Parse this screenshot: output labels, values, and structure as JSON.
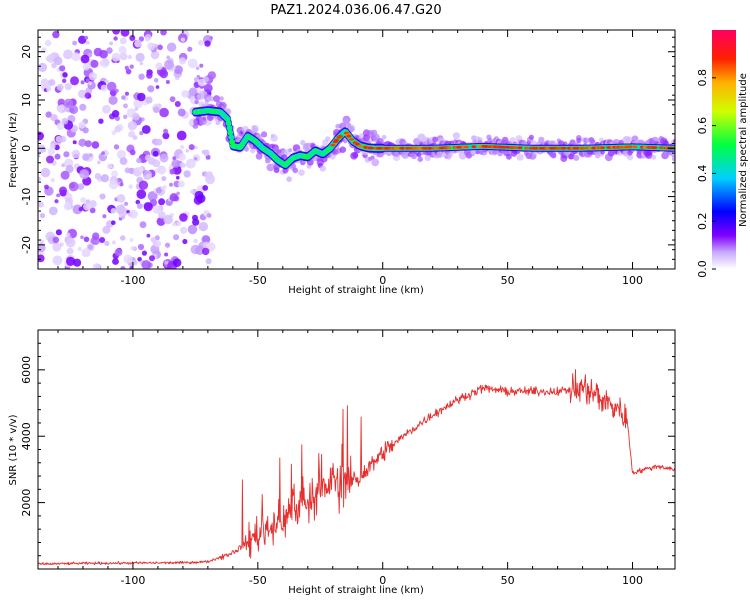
{
  "title": "PAZ1.2024.036.06.47.G20",
  "colors": {
    "snr_line": "#e53030",
    "axis": "#000000",
    "background": "#ffffff"
  },
  "chart_data": [
    {
      "type": "heatmap",
      "xlabel": "Height of straight line (km)",
      "ylabel": "Frequency (Hz)",
      "xlim": [
        -138,
        117
      ],
      "ylim": [
        -25,
        24.5
      ],
      "xticks": [
        -100,
        -50,
        0,
        50,
        100
      ],
      "xtick_labels": [
        "-100",
        "-50",
        "0",
        "50",
        "100"
      ],
      "yticks": [
        -20,
        -10,
        0,
        10,
        20
      ],
      "ytick_labels": [
        "-20",
        "-10",
        "0",
        "10",
        "20"
      ],
      "colorbar": {
        "label": "Normalized spectral amplitude",
        "ticks": [
          0.0,
          0.2,
          0.4,
          0.6,
          0.8
        ],
        "tick_labels": [
          "0.0",
          "0.2",
          "0.4",
          "0.6",
          "0.8"
        ],
        "range": [
          0,
          1
        ]
      },
      "noise_region_x": [
        -138,
        -68
      ],
      "ridge": {
        "x": [
          -75,
          -70,
          -65,
          -62,
          -60,
          -57,
          -54,
          -51,
          -48,
          -45,
          -42,
          -39,
          -36,
          -33,
          -30,
          -27,
          -24,
          -21,
          -18,
          -15,
          -12,
          -9,
          -6,
          -3,
          0,
          20,
          40,
          60,
          80,
          100,
          117
        ],
        "y": [
          7.5,
          7.8,
          7.5,
          6.0,
          0.5,
          0.2,
          2.5,
          1.5,
          0.0,
          -1.0,
          -2.5,
          -3.5,
          -2.0,
          -1.5,
          -1.8,
          -0.5,
          -1.2,
          0.0,
          2.0,
          3.5,
          1.5,
          0.5,
          0.1,
          0.0,
          0.0,
          0.0,
          0.4,
          0.0,
          0.0,
          0.3,
          0.0
        ]
      }
    },
    {
      "type": "line",
      "xlabel": "Height of straight line (km)",
      "ylabel": "SNR (10 * v/v)",
      "xlim": [
        -138,
        117
      ],
      "ylim": [
        0,
        7200
      ],
      "xticks": [
        -100,
        -50,
        0,
        50,
        100
      ],
      "xtick_labels": [
        "-100",
        "-50",
        "0",
        "50",
        "100"
      ],
      "yticks": [
        2000,
        4000,
        6000
      ],
      "ytick_labels": [
        "2000",
        "4000",
        "6000"
      ],
      "series": [
        {
          "x": [
            -138,
            -120,
            -100,
            -80,
            -70,
            -60,
            -55,
            -50,
            -45,
            -40,
            -35,
            -30,
            -25,
            -20,
            -15,
            -10,
            -5,
            0,
            10,
            20,
            30,
            40,
            50,
            60,
            70,
            80,
            85,
            90,
            95,
            98,
            100,
            105,
            110,
            117
          ],
          "values": [
            150,
            170,
            180,
            190,
            220,
            500,
            750,
            1100,
            1300,
            1500,
            1800,
            2100,
            2300,
            2700,
            2700,
            2700,
            3100,
            3500,
            4100,
            4650,
            5100,
            5450,
            5350,
            5350,
            5350,
            5450,
            5300,
            5000,
            4800,
            4400,
            2900,
            3000,
            3100,
            3000
          ]
        }
      ]
    }
  ]
}
